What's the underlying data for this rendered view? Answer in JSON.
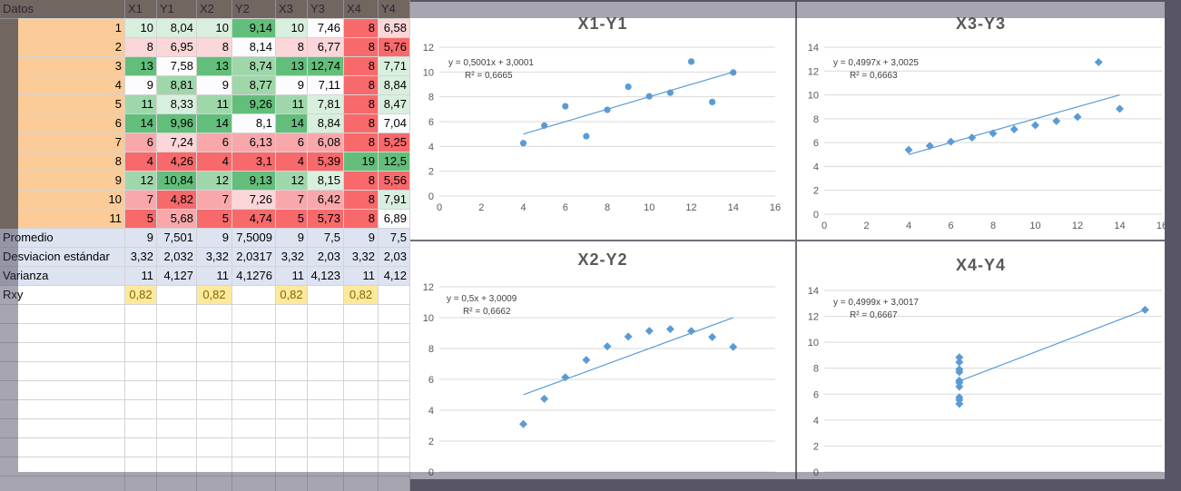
{
  "sheet": {
    "title": "Datos",
    "columns": [
      "X1",
      "Y1",
      "X2",
      "Y2",
      "X3",
      "Y3",
      "X4",
      "Y4"
    ],
    "rows": [
      {
        "n": "1",
        "v": [
          "10",
          "8,04",
          "10",
          "9,14",
          "10",
          "7,46",
          "8",
          "6,58"
        ]
      },
      {
        "n": "2",
        "v": [
          "8",
          "6,95",
          "8",
          "8,14",
          "8",
          "6,77",
          "8",
          "5,76"
        ]
      },
      {
        "n": "3",
        "v": [
          "13",
          "7,58",
          "13",
          "8,74",
          "13",
          "12,74",
          "8",
          "7,71"
        ]
      },
      {
        "n": "4",
        "v": [
          "9",
          "8,81",
          "9",
          "8,77",
          "9",
          "7,11",
          "8",
          "8,84"
        ]
      },
      {
        "n": "5",
        "v": [
          "11",
          "8,33",
          "11",
          "9,26",
          "11",
          "7,81",
          "8",
          "8,47"
        ]
      },
      {
        "n": "6",
        "v": [
          "14",
          "9,96",
          "14",
          "8,1",
          "14",
          "8,84",
          "8",
          "7,04"
        ]
      },
      {
        "n": "7",
        "v": [
          "6",
          "7,24",
          "6",
          "6,13",
          "6",
          "6,08",
          "8",
          "5,25"
        ]
      },
      {
        "n": "8",
        "v": [
          "4",
          "4,26",
          "4",
          "3,1",
          "4",
          "5,39",
          "19",
          "12,5"
        ]
      },
      {
        "n": "9",
        "v": [
          "12",
          "10,84",
          "12",
          "9,13",
          "12",
          "8,15",
          "8",
          "5,56"
        ]
      },
      {
        "n": "10",
        "v": [
          "7",
          "4,82",
          "7",
          "7,26",
          "7",
          "6,42",
          "8",
          "7,91"
        ]
      },
      {
        "n": "11",
        "v": [
          "5",
          "5,68",
          "5",
          "4,74",
          "5",
          "5,73",
          "8",
          "6,89"
        ]
      }
    ],
    "stats": [
      {
        "label": "Promedio",
        "v": [
          "9",
          "7,501",
          "9",
          "7,5009",
          "9",
          "7,5",
          "9",
          "7,5"
        ]
      },
      {
        "label": "Desviacion estándar",
        "v": [
          "3,32",
          "2,032",
          "3,32",
          "2,0317",
          "3,32",
          "2,03",
          "3,32",
          "2,03"
        ]
      },
      {
        "label": "Varianza",
        "v": [
          "11",
          "4,127",
          "11",
          "4,1276",
          "11",
          "4,123",
          "11",
          "4,12"
        ]
      }
    ],
    "rxy": {
      "label": "Rxy",
      "values": [
        "0,82",
        "0,82",
        "0,82",
        "0,82"
      ]
    },
    "colors": {
      "green_dark": "#63be7b",
      "green_mid": "#9fd7ab",
      "green_light": "#d9efde",
      "white": "#fcfcff",
      "pink_light": "#fbd6d8",
      "pink_mid": "#f8a8ab",
      "red": "#f8696b"
    }
  },
  "chart_data": [
    {
      "type": "scatter",
      "title": "X1-Y1",
      "x": [
        10,
        8,
        13,
        9,
        11,
        14,
        6,
        4,
        12,
        7,
        5
      ],
      "y": [
        8.04,
        6.95,
        7.58,
        8.81,
        8.33,
        9.96,
        7.24,
        4.26,
        10.84,
        4.82,
        5.68
      ],
      "xlim": [
        0,
        16
      ],
      "ylim": [
        0,
        12
      ],
      "xticks": [
        0,
        2,
        4,
        6,
        8,
        10,
        12,
        14,
        16
      ],
      "yticks": [
        0,
        2,
        4,
        6,
        8,
        10,
        12
      ],
      "marker": "circle",
      "trend": {
        "slope": 0.5001,
        "intercept": 3.0001,
        "from": 4,
        "to": 14
      },
      "equation": "y = 0,5001x + 3,0001",
      "r2": "R² = 0,6665",
      "grid": true
    },
    {
      "type": "scatter",
      "title": "X3-Y3",
      "x": [
        10,
        8,
        13,
        9,
        11,
        14,
        6,
        4,
        12,
        7,
        5
      ],
      "y": [
        7.46,
        6.77,
        12.74,
        7.11,
        7.81,
        8.84,
        6.08,
        5.39,
        8.15,
        6.42,
        5.73
      ],
      "xlim": [
        0,
        16
      ],
      "ylim": [
        0,
        14
      ],
      "xticks": [
        0,
        2,
        4,
        6,
        8,
        10,
        12,
        14,
        16
      ],
      "yticks": [
        0,
        2,
        4,
        6,
        8,
        10,
        12,
        14
      ],
      "marker": "diamond",
      "trend": {
        "slope": 0.4997,
        "intercept": 3.0025,
        "from": 4,
        "to": 14
      },
      "equation": "y = 0,4997x + 3,0025",
      "r2": "R² = 0,6663",
      "grid": true
    },
    {
      "type": "scatter",
      "title": "X2-Y2",
      "x": [
        10,
        8,
        13,
        9,
        11,
        14,
        6,
        4,
        12,
        7,
        5
      ],
      "y": [
        9.14,
        8.14,
        8.74,
        8.77,
        9.26,
        8.1,
        6.13,
        3.1,
        9.13,
        7.26,
        4.74
      ],
      "xlim": [
        0,
        16
      ],
      "ylim": [
        0,
        12
      ],
      "xticks": [
        0,
        2,
        4,
        6,
        8,
        10,
        12,
        14,
        16
      ],
      "yticks": [
        0,
        2,
        4,
        6,
        8,
        10,
        12
      ],
      "marker": "diamond",
      "trend": {
        "slope": 0.5,
        "intercept": 3.0009,
        "from": 4,
        "to": 14
      },
      "equation": "y = 0,5x + 3,0009",
      "r2": "R² = 0,6662",
      "grid": true
    },
    {
      "type": "scatter",
      "title": "X4-Y4",
      "x": [
        8,
        8,
        8,
        8,
        8,
        8,
        8,
        19,
        8,
        8,
        8
      ],
      "y": [
        6.58,
        5.76,
        7.71,
        8.84,
        8.47,
        7.04,
        5.25,
        12.5,
        5.56,
        7.91,
        6.89
      ],
      "xlim": [
        0,
        20
      ],
      "ylim": [
        0,
        14
      ],
      "xticks": [
        0,
        5,
        10,
        15,
        20
      ],
      "yticks": [
        0,
        2,
        4,
        6,
        8,
        10,
        12,
        14
      ],
      "marker": "diamond",
      "trend": {
        "slope": 0.4999,
        "intercept": 3.0017,
        "from": 8,
        "to": 19
      },
      "equation": "y = 0,4999x + 3,0017",
      "r2": "R² = 0,6667",
      "grid": true
    }
  ]
}
